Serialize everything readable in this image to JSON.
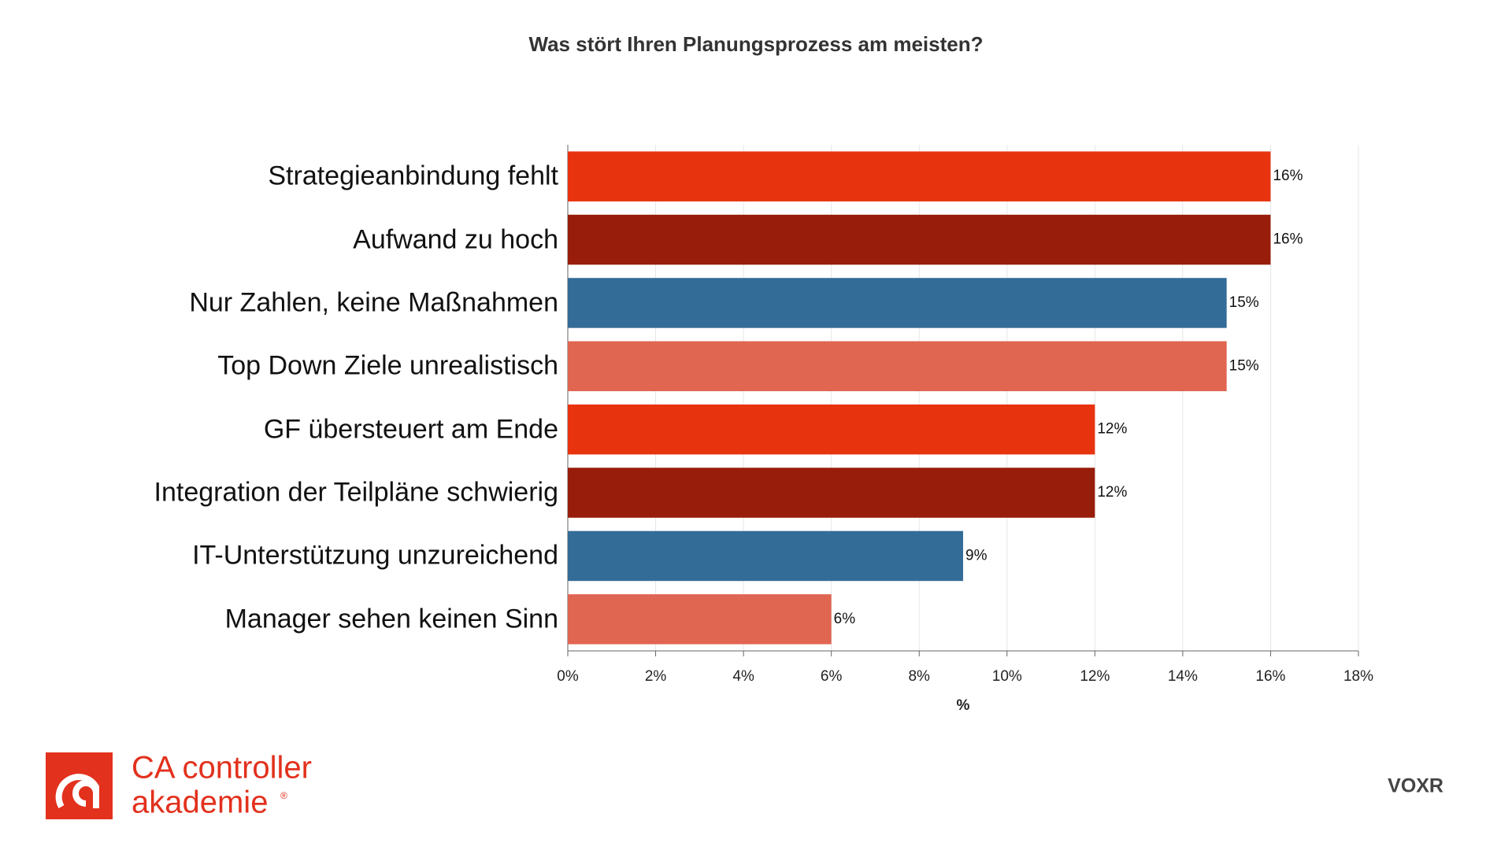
{
  "chart_data": {
    "type": "bar",
    "orientation": "horizontal",
    "title": "Was stört Ihren Planungsprozess am meisten?",
    "x_label": "%",
    "categories": [
      "Strategieanbindung fehlt",
      "Aufwand zu hoch",
      "Nur Zahlen, keine Maßnahmen",
      "Top Down Ziele unrealistisch",
      "GF übersteuert am Ende",
      "Integration der Teilpläne schwierig",
      "IT-Unterstützung unzureichend",
      "Manager sehen keinen Sinn"
    ],
    "values": [
      16,
      16,
      15,
      15,
      12,
      12,
      9,
      6
    ],
    "value_labels": [
      "16%",
      "16%",
      "15%",
      "15%",
      "12%",
      "12%",
      "9%",
      "6%"
    ],
    "colors": [
      "#e8330f",
      "#981d0b",
      "#346c98",
      "#e06652",
      "#e8330f",
      "#981d0b",
      "#346c98",
      "#e06652"
    ],
    "xlim": [
      0,
      18
    ],
    "xticks": [
      {
        "value": 0,
        "label": "0%"
      },
      {
        "value": 2,
        "label": "2%"
      },
      {
        "value": 4,
        "label": "4%"
      },
      {
        "value": 6,
        "label": "6%"
      },
      {
        "value": 8,
        "label": "8%"
      },
      {
        "value": 10,
        "label": "10%"
      },
      {
        "value": 12,
        "label": "12%"
      },
      {
        "value": 14,
        "label": "14%"
      },
      {
        "value": 16,
        "label": "16%"
      },
      {
        "value": 18,
        "label": "18%"
      }
    ],
    "grid": true
  },
  "logo": {
    "line1": "CA controller",
    "line2": "akademie",
    "mark": "®"
  },
  "brand": "VOXR"
}
